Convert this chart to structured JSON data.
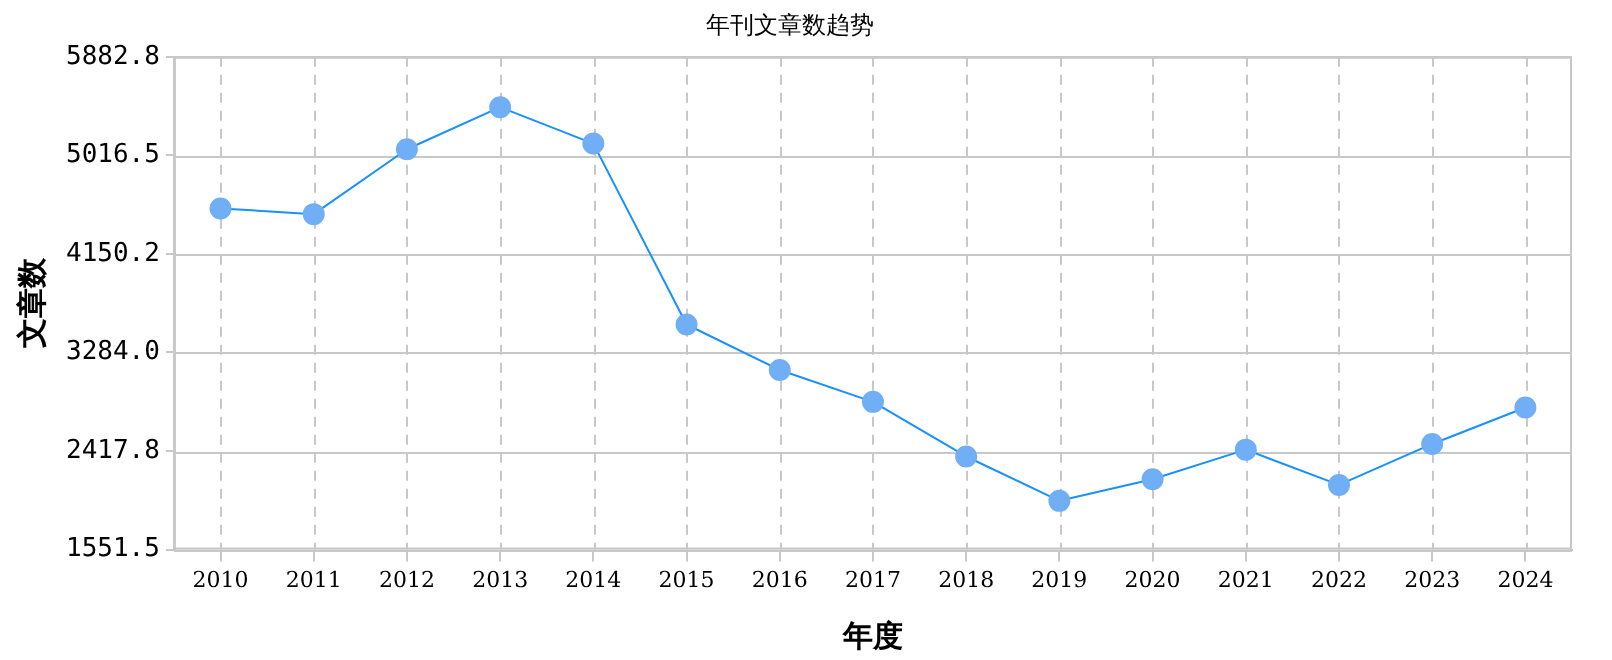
{
  "chart_data": {
    "type": "line",
    "title": "年刊文章数趋势",
    "xlabel": "年度",
    "ylabel": "文章数",
    "categories": [
      "2010",
      "2011",
      "2012",
      "2013",
      "2014",
      "2015",
      "2016",
      "2017",
      "2018",
      "2019",
      "2020",
      "2021",
      "2022",
      "2023",
      "2024"
    ],
    "series": [
      {
        "color": "#1890ff",
        "values": [
          4550,
          4500,
          5070,
          5440,
          5120,
          3530,
          3130,
          2850,
          2370,
          1980,
          2170,
          2430,
          2120,
          2480,
          2800
        ]
      }
    ],
    "ylim": [
      1551.5,
      5882.8
    ],
    "yticks": [
      {
        "value": 1551.5,
        "label": "1551.5"
      },
      {
        "value": 2417.8,
        "label": "2417.8"
      },
      {
        "value": 3284,
        "label": "3284.0"
      },
      {
        "value": 4150.2,
        "label": "4150.2"
      },
      {
        "value": 5016.5,
        "label": "5016.5"
      },
      {
        "value": 5882.8,
        "label": "5882.8"
      }
    ],
    "grid": true,
    "legend": false,
    "marker": "circle",
    "line_style": "solid"
  }
}
